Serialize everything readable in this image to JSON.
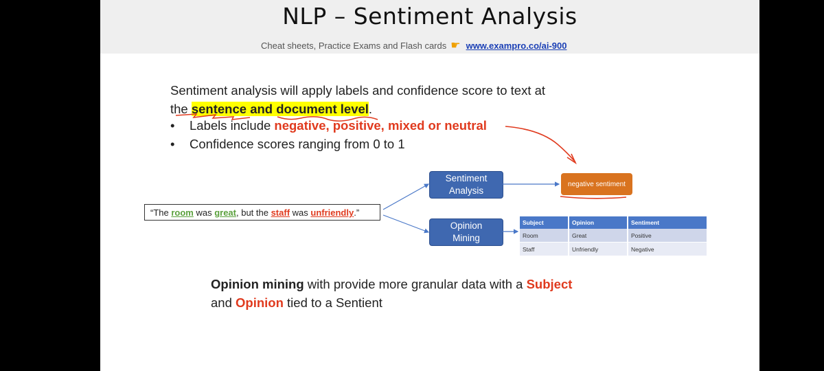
{
  "header": {
    "title": "NLP – Sentiment Analysis",
    "subtitle": "Cheat sheets, Practice Exams and Flash cards",
    "link": "www.exampro.co/ai-900"
  },
  "intro": {
    "line1": "Sentiment analysis will apply labels and confidence score to text at",
    "line2_pre": "the ",
    "line2_highlight": "sentence and document level",
    "line2_post": "."
  },
  "bullets": [
    {
      "pre": "Labels include ",
      "highlight": "negative, positive, mixed or neutral"
    },
    {
      "pre": "Confidence scores ranging from 0 to 1"
    }
  ],
  "diagram": {
    "sentiment_box": "Sentiment Analysis",
    "opinion_box": "Opinion Mining",
    "result_box": "negative sentiment",
    "quote": {
      "open": "“The ",
      "w1": "room",
      "t1": " was ",
      "w2": "great",
      "t2": ", but the ",
      "w3": "staff",
      "t3": " was ",
      "w4": "unfriendly",
      "close": ".”"
    },
    "table": {
      "headers": [
        "Subject",
        "Opinion",
        "Sentiment"
      ],
      "rows": [
        [
          "Room",
          "Great",
          "Positive"
        ],
        [
          "Staff",
          "Unfriendly",
          "Negative"
        ]
      ]
    }
  },
  "footer": {
    "b1": "Opinion mining",
    "t1": " with provide more granular data with a ",
    "r1": "Subject",
    "t2": "and ",
    "r2": "Opinion",
    "t3": " tied to a Sentient"
  },
  "colors": {
    "accent_red": "#e03a1e",
    "accent_green": "#5aa03c",
    "box_blue": "#3f68b0",
    "box_orange": "#d9731f",
    "highlight": "#ffff00"
  }
}
